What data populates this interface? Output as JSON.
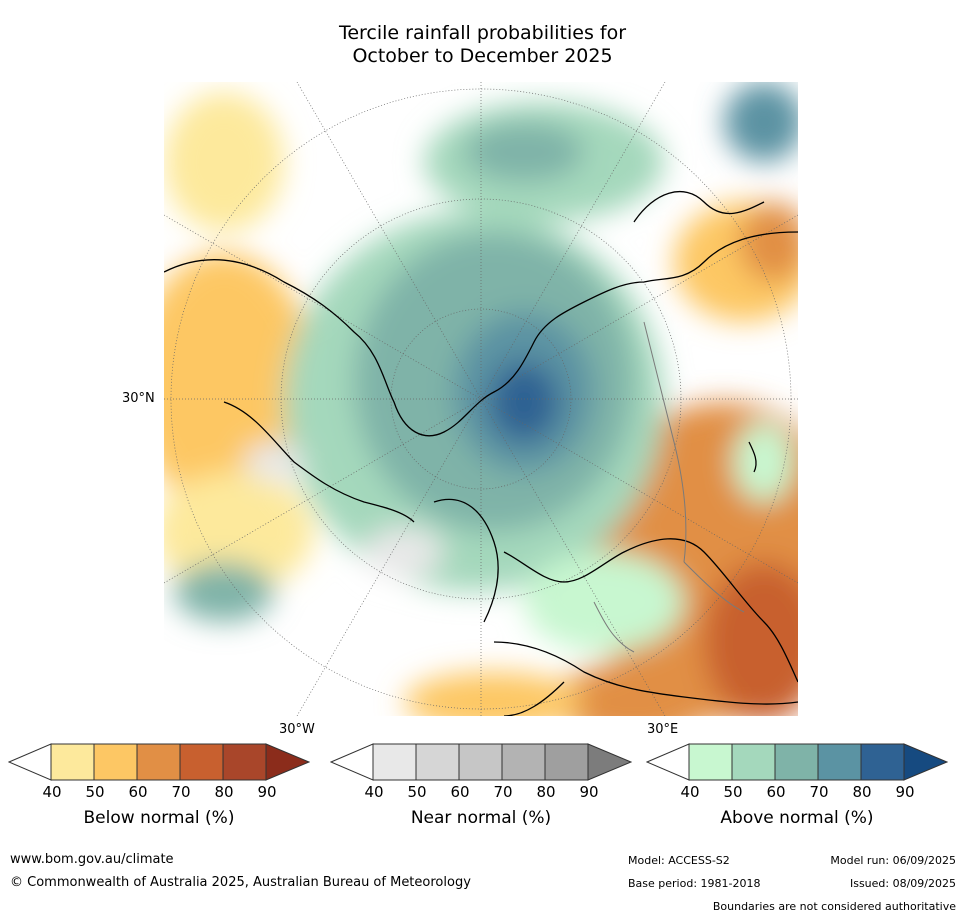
{
  "title_line1": "Tercile rainfall probabilities for",
  "title_line2": "October to December 2025",
  "map": {
    "lat_label": "30°N",
    "lon_labels": [
      "30°W",
      "30°E"
    ]
  },
  "colorbars": [
    {
      "name": "Below normal (%)",
      "ticks": [
        "40",
        "50",
        "60",
        "70",
        "80",
        "90"
      ],
      "colors": [
        "#ffffff",
        "#fde99c",
        "#fdc764",
        "#e18f45",
        "#c8602f",
        "#a9462a",
        "#8b2c1b"
      ]
    },
    {
      "name": "Near normal (%)",
      "ticks": [
        "40",
        "50",
        "60",
        "70",
        "80",
        "90"
      ],
      "colors": [
        "#ffffff",
        "#e8e8e8",
        "#d6d6d6",
        "#c6c6c6",
        "#b3b3b3",
        "#9f9f9f",
        "#7c7c7c"
      ]
    },
    {
      "name": "Above normal (%)",
      "ticks": [
        "40",
        "50",
        "60",
        "70",
        "80",
        "90"
      ],
      "colors": [
        "#ffffff",
        "#c8f7d0",
        "#a4d8bc",
        "#7fb3a8",
        "#5b93a3",
        "#2f6293",
        "#164a80"
      ]
    }
  ],
  "footer": {
    "website": "www.bom.gov.au/climate",
    "copyright": "© Commonwealth of Australia 2025, Australian Bureau of Meteorology",
    "model": "Model: ACCESS-S2",
    "base_period": "Base period: 1981-2018",
    "model_run": "Model run: 06/09/2025",
    "issued": "Issued: 08/09/2025",
    "disclaimer": "Boundaries are not considered authoritative"
  }
}
